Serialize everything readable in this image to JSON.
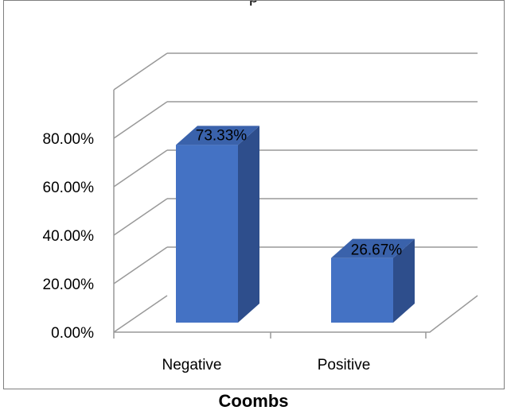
{
  "chart_data": {
    "type": "bar",
    "style": "3d-column",
    "categories": [
      "Negative",
      "Positive"
    ],
    "values": [
      73.33,
      26.67
    ],
    "value_labels": [
      "73.33%",
      "26.67%"
    ],
    "y_ticks": [
      "0.00%",
      "20.00%",
      "40.00%",
      "60.00%",
      "80.00%"
    ],
    "ylim": [
      0,
      80
    ],
    "xlabel": "Coombs",
    "ylabel": "",
    "title_fragment": "p",
    "grid": true,
    "legend": "none",
    "colors": {
      "bar_front": "#4472c4",
      "bar_side": "#2e4e8c",
      "bar_top": "#3a62ab",
      "grid": "#999999",
      "frame": "#7f7f7f"
    }
  }
}
